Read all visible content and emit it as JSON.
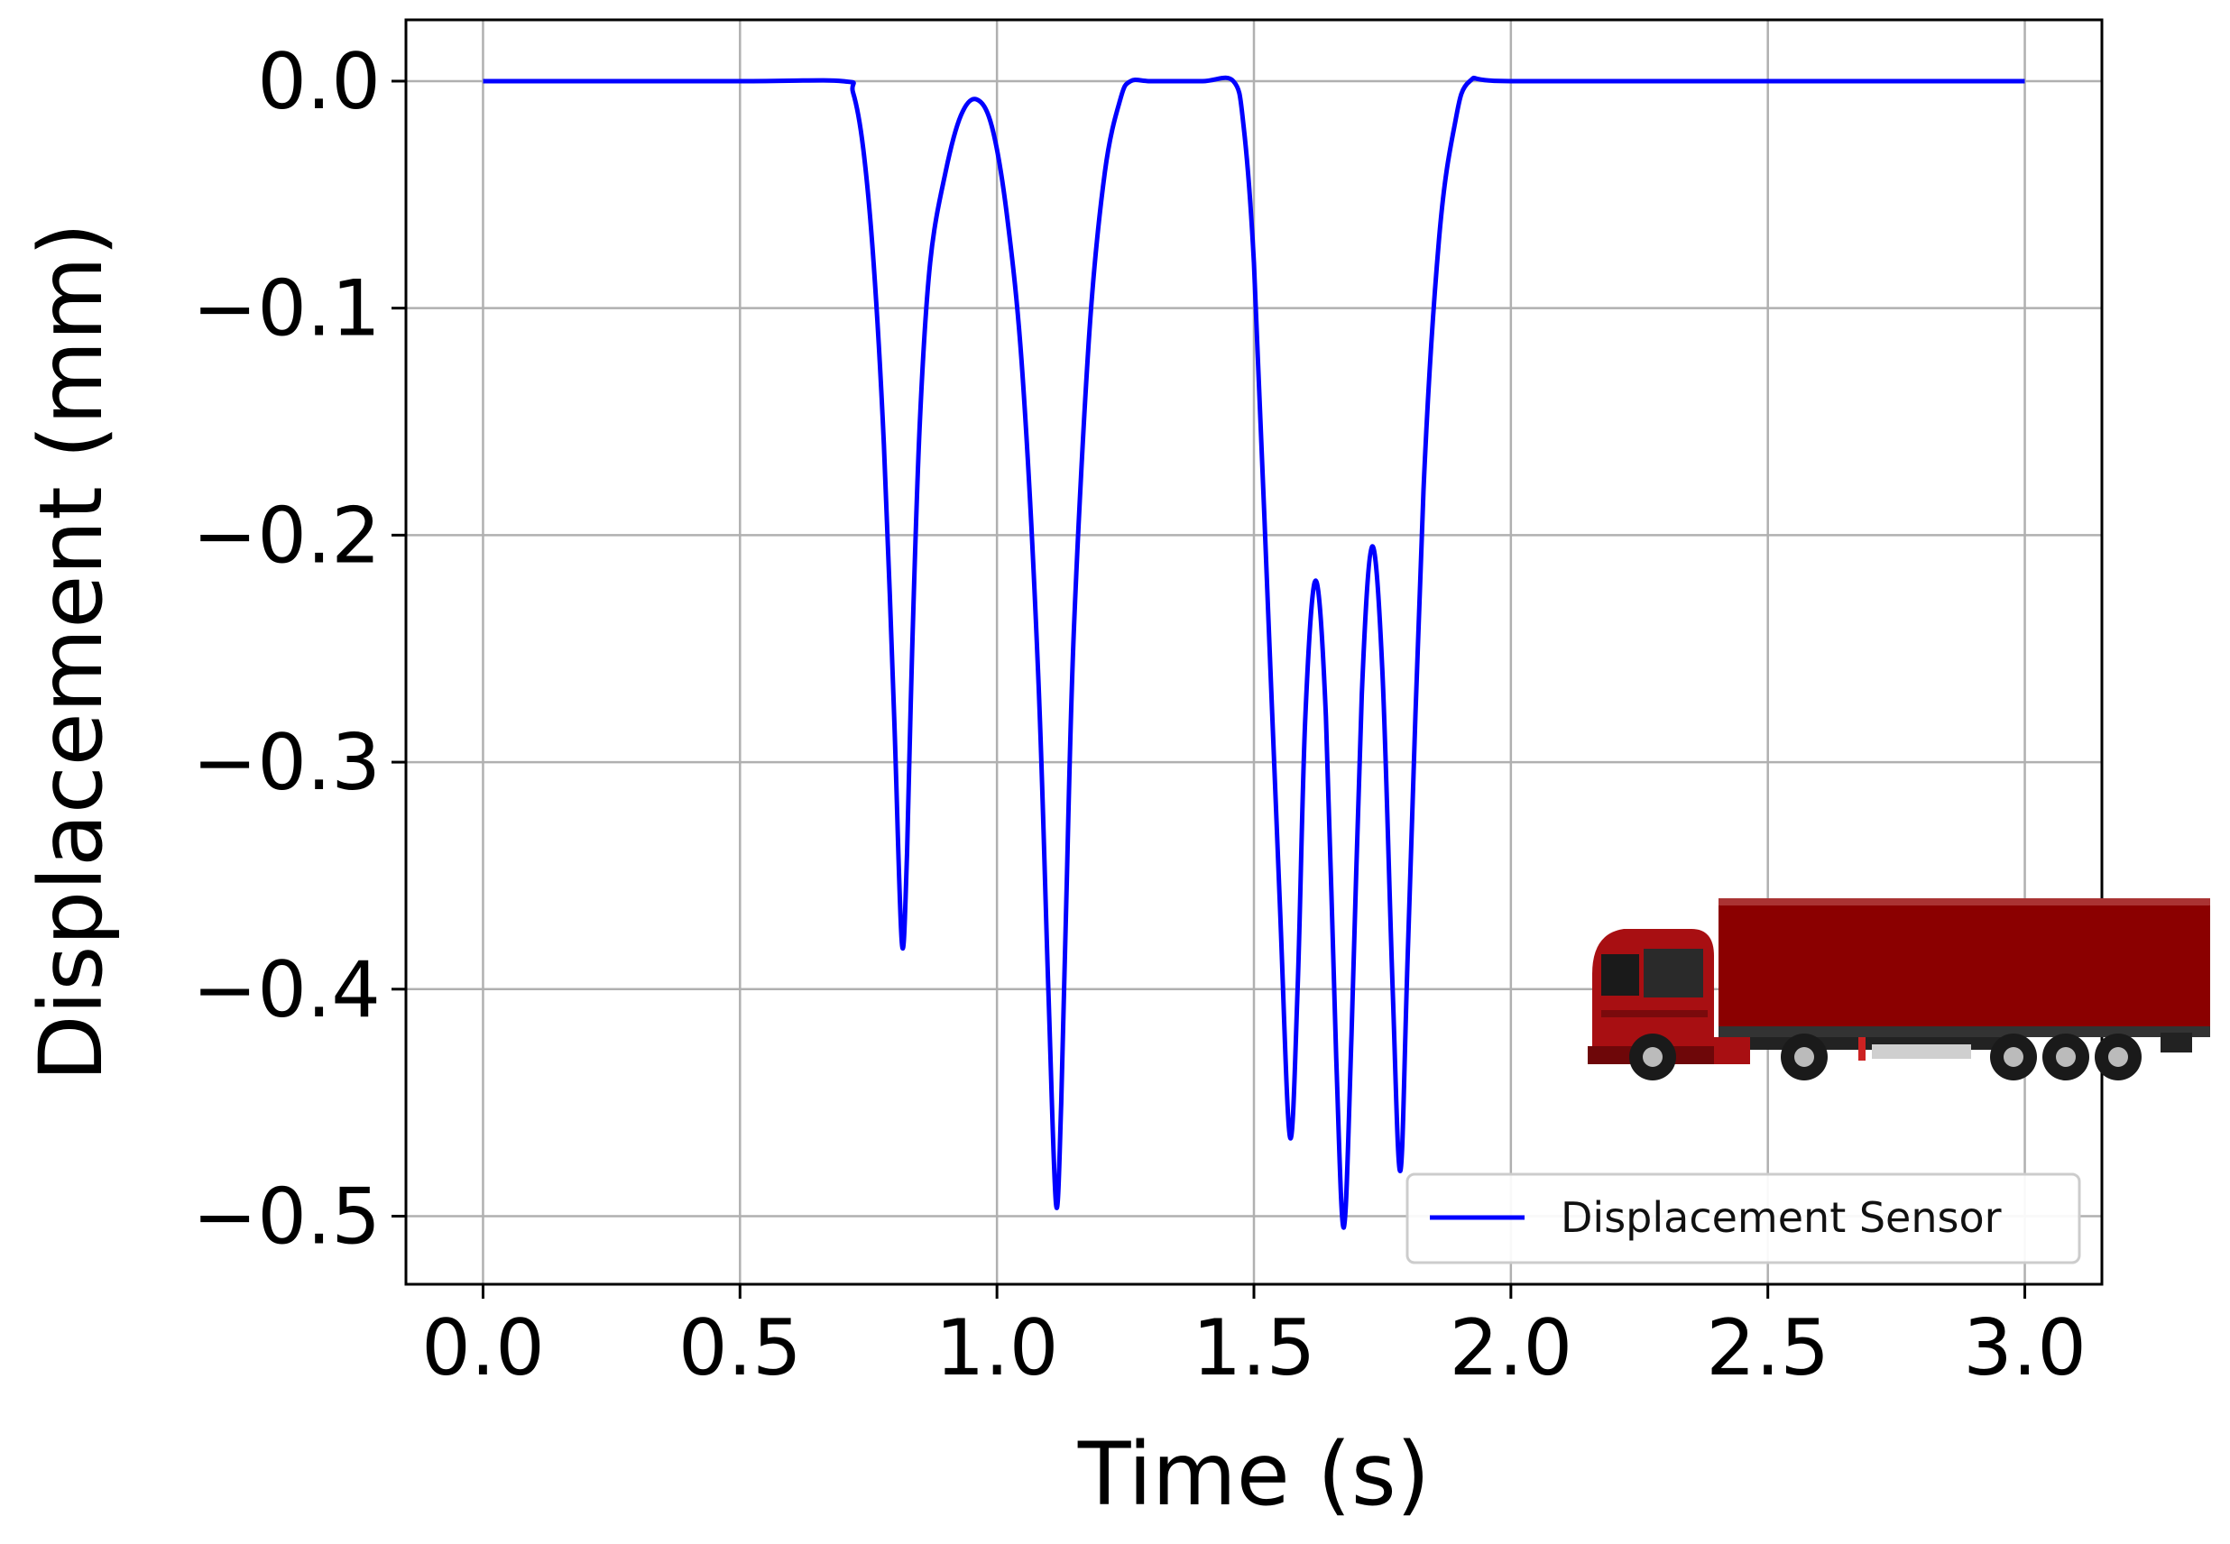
{
  "chart_data": {
    "type": "line",
    "title": "",
    "xlabel": "Time (s)",
    "ylabel": "Displacement (mm)",
    "xlim": [
      -0.15,
      3.15
    ],
    "ylim": [
      -0.53,
      0.027
    ],
    "xticks": [
      0.0,
      0.5,
      1.0,
      1.5,
      2.0,
      2.5,
      3.0
    ],
    "xtick_labels": [
      "0.0",
      "0.5",
      "1.0",
      "1.5",
      "2.0",
      "2.5",
      "3.0"
    ],
    "yticks": [
      0.0,
      -0.1,
      -0.2,
      -0.3,
      -0.4,
      -0.5
    ],
    "ytick_labels": [
      "0.0",
      "−0.1",
      "−0.2",
      "−0.3",
      "−0.4",
      "−0.5"
    ],
    "grid": true,
    "legend": {
      "placement": "lower-right",
      "entries": [
        "Displacement Sensor"
      ]
    },
    "series": [
      {
        "name": "Displacement Sensor",
        "color": "#0000ff",
        "x": [
          0.0,
          0.5,
          0.7,
          0.72,
          0.74,
          0.76,
          0.78,
          0.8,
          0.815,
          0.825,
          0.835,
          0.85,
          0.87,
          0.9,
          0.93,
          0.96,
          0.99,
          1.02,
          1.05,
          1.08,
          1.1,
          1.115,
          1.125,
          1.135,
          1.15,
          1.18,
          1.21,
          1.24,
          1.26,
          1.3,
          1.4,
          1.46,
          1.48,
          1.5,
          1.52,
          1.55,
          1.57,
          1.585,
          1.6,
          1.62,
          1.64,
          1.66,
          1.675,
          1.69,
          1.71,
          1.73,
          1.75,
          1.77,
          1.785,
          1.8,
          1.83,
          1.86,
          1.89,
          1.92,
          2.0,
          2.5,
          3.0
        ],
        "y": [
          0.0,
          0.0,
          0.0,
          -0.005,
          -0.03,
          -0.08,
          -0.16,
          -0.28,
          -0.38,
          -0.34,
          -0.25,
          -0.15,
          -0.08,
          -0.04,
          -0.015,
          -0.008,
          -0.02,
          -0.06,
          -0.13,
          -0.26,
          -0.4,
          -0.495,
          -0.45,
          -0.36,
          -0.24,
          -0.11,
          -0.04,
          -0.008,
          0.0,
          0.0,
          0.0,
          0.0,
          -0.02,
          -0.08,
          -0.19,
          -0.36,
          -0.465,
          -0.4,
          -0.28,
          -0.22,
          -0.28,
          -0.43,
          -0.505,
          -0.42,
          -0.27,
          -0.205,
          -0.26,
          -0.4,
          -0.48,
          -0.38,
          -0.18,
          -0.07,
          -0.02,
          0.0,
          0.0,
          0.0,
          0.0
        ]
      }
    ]
  },
  "illustration": {
    "name": "truck-icon",
    "body_color": "#8b0000"
  }
}
